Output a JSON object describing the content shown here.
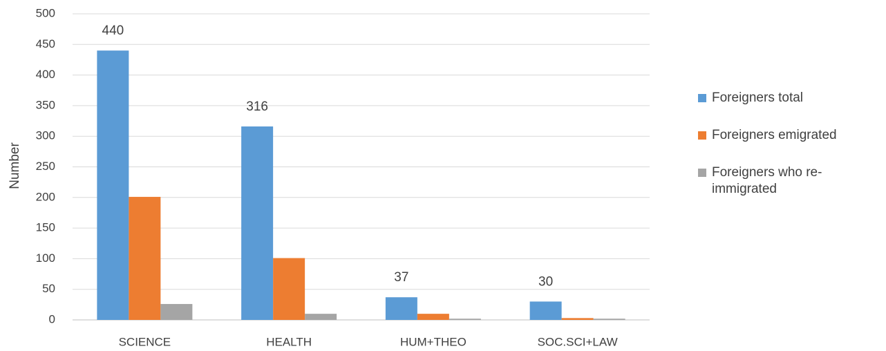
{
  "chart_data": {
    "type": "bar",
    "categories": [
      "SCIENCE",
      "HEALTH",
      "HUM+THEO",
      "SOC.SCI+LAW"
    ],
    "series": [
      {
        "name": "Foreigners total",
        "color": "#5b9bd5",
        "values": [
          440,
          316,
          37,
          30
        ],
        "data_labels": true
      },
      {
        "name": "Foreigners emigrated",
        "color": "#ed7d31",
        "values": [
          201,
          101,
          10,
          3
        ]
      },
      {
        "name": "Foreigners who re-immigrated",
        "color": "#a5a5a5",
        "values": [
          26,
          10,
          2,
          2
        ]
      }
    ],
    "y_label": "Number",
    "ylim": [
      0,
      500
    ],
    "yticks": [
      0,
      50,
      100,
      150,
      200,
      250,
      300,
      350,
      400,
      450,
      500
    ],
    "grid": true,
    "legend": "right"
  }
}
